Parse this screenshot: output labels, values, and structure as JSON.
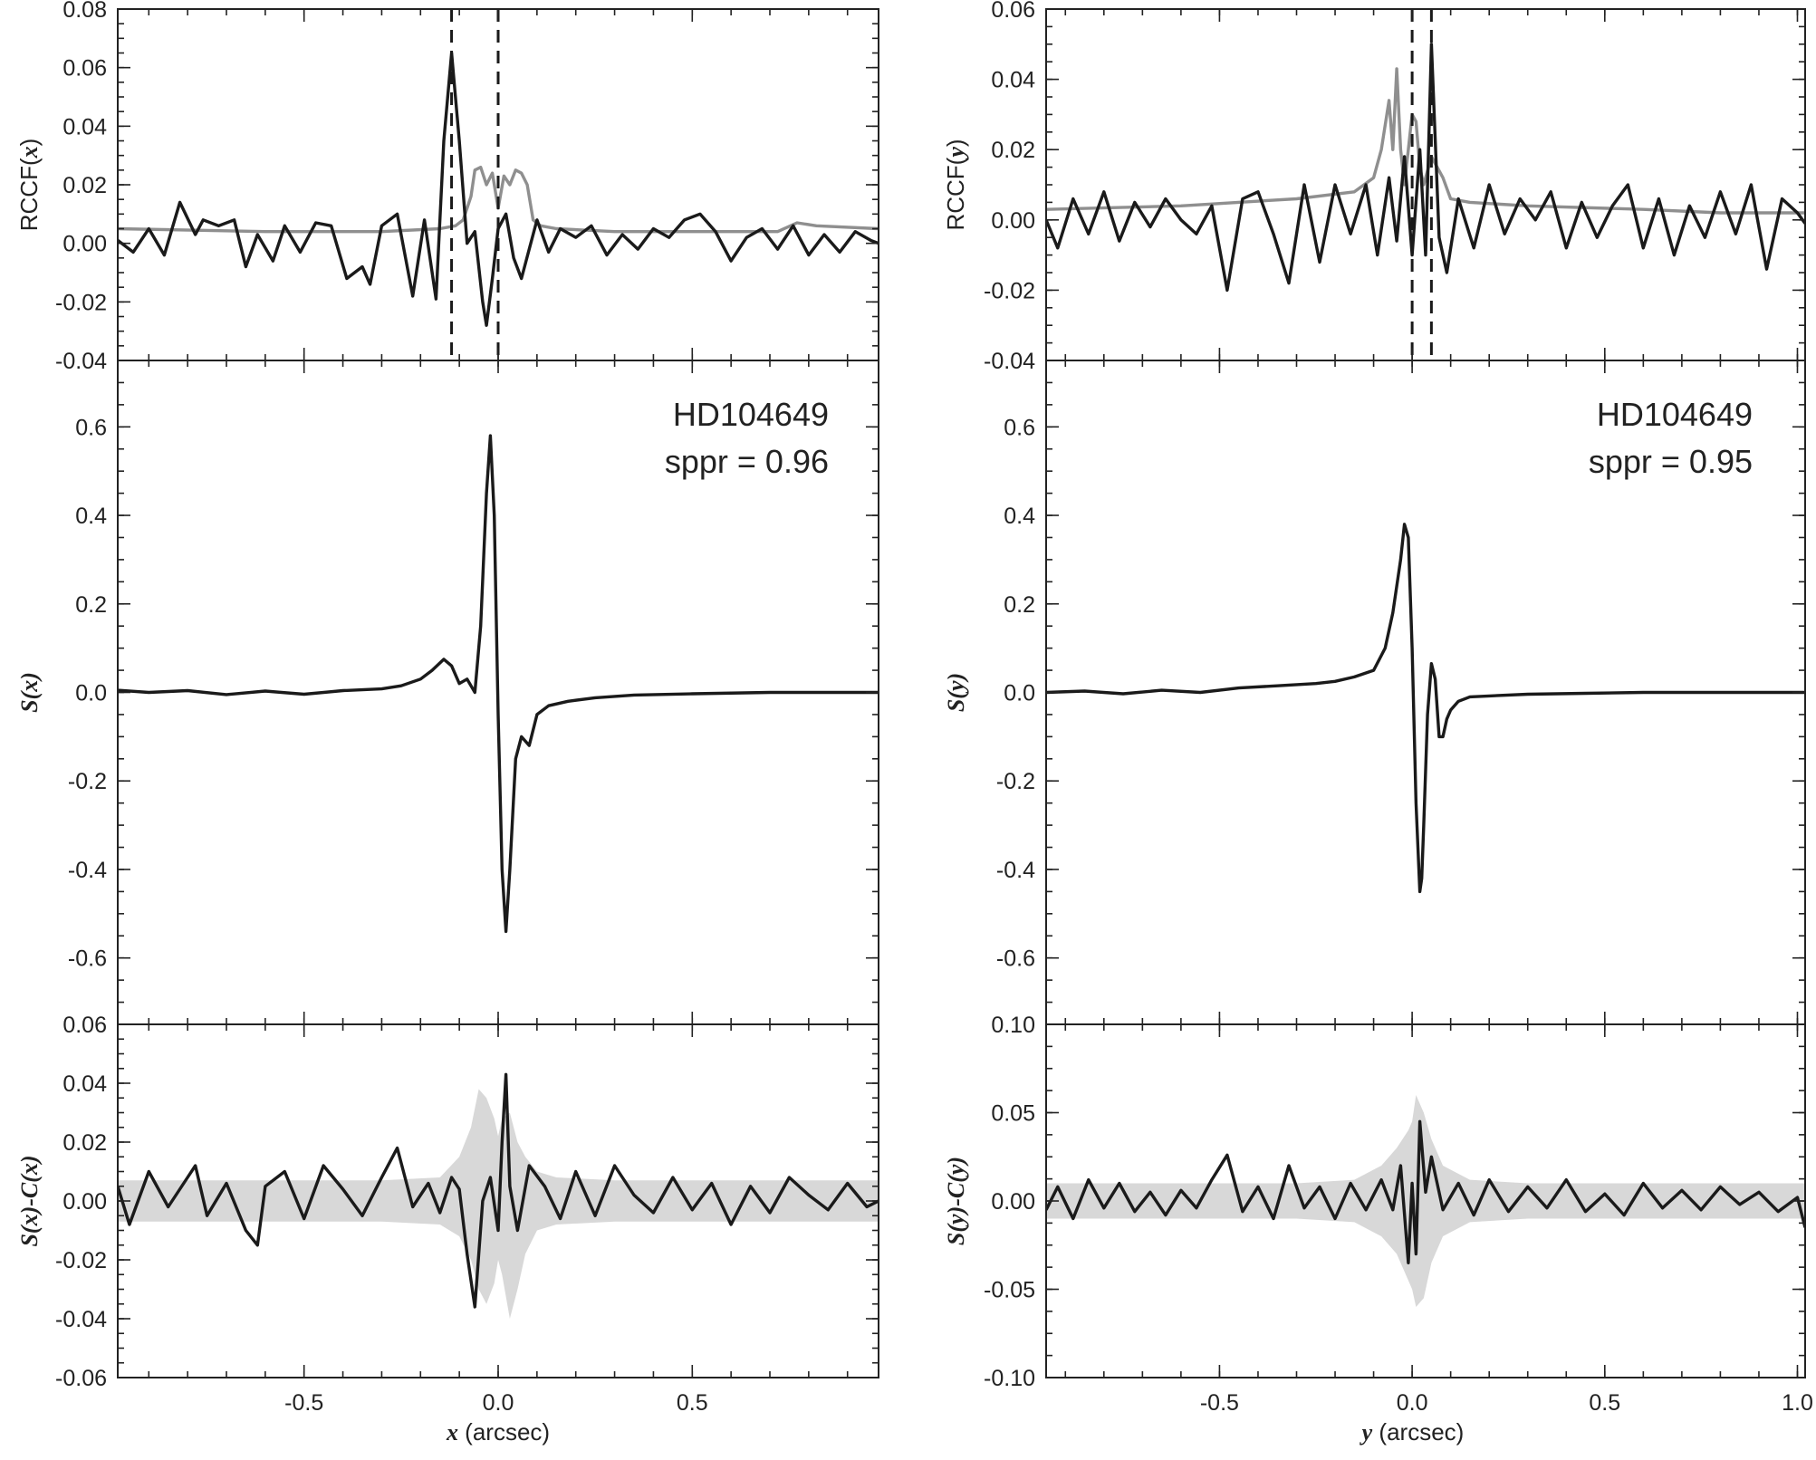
{
  "figure": {
    "panels_left": {
      "xlabel_var": "x",
      "xlabel_unit": " (arcsec)",
      "xlim": [
        -0.98,
        0.98
      ],
      "xticks": [
        -0.5,
        0.0,
        0.5
      ],
      "xtick_labels": [
        "-0.5",
        "0.0",
        "0.5"
      ]
    },
    "panels_right": {
      "xlabel_var": "y",
      "xlabel_unit": " (arcsec)",
      "xlim": [
        -0.95,
        1.02
      ],
      "xticks": [
        -0.5,
        0.0,
        0.5,
        1.0
      ],
      "xtick_labels": [
        "-0.5",
        "0.0",
        "0.5",
        "1.0"
      ]
    }
  },
  "chart_data": [
    {
      "id": "rccf-x",
      "type": "line",
      "ylabel_prefix": "RCCF(",
      "ylabel_var": "x",
      "ylabel_suffix": ")",
      "xlim": [
        -0.98,
        0.98
      ],
      "ylim": [
        -0.04,
        0.08
      ],
      "yticks": [
        -0.04,
        -0.02,
        0.0,
        0.02,
        0.04,
        0.06,
        0.08
      ],
      "ytick_labels": [
        "-0.04",
        "-0.02",
        "0.00",
        "0.02",
        "0.04",
        "0.06",
        "0.08"
      ],
      "vlines": [
        -0.12,
        0.0
      ],
      "series": [
        {
          "color": "#8f8f8f",
          "x": [
            -0.98,
            -0.6,
            -0.3,
            -0.15,
            -0.11,
            -0.09,
            -0.07,
            -0.06,
            -0.045,
            -0.03,
            -0.015,
            0.0,
            0.015,
            0.03,
            0.045,
            0.06,
            0.075,
            0.09,
            0.11,
            0.15,
            0.3,
            0.5,
            0.72,
            0.77,
            0.82,
            0.98
          ],
          "y": [
            0.005,
            0.004,
            0.004,
            0.005,
            0.006,
            0.008,
            0.016,
            0.025,
            0.026,
            0.02,
            0.024,
            0.012,
            0.023,
            0.02,
            0.025,
            0.024,
            0.02,
            0.008,
            0.006,
            0.005,
            0.004,
            0.004,
            0.004,
            0.007,
            0.006,
            0.005
          ]
        },
        {
          "color": "#1a1a1a",
          "x": [
            -0.98,
            -0.94,
            -0.9,
            -0.86,
            -0.82,
            -0.78,
            -0.76,
            -0.72,
            -0.68,
            -0.65,
            -0.62,
            -0.58,
            -0.55,
            -0.51,
            -0.47,
            -0.43,
            -0.39,
            -0.35,
            -0.33,
            -0.3,
            -0.26,
            -0.22,
            -0.19,
            -0.16,
            -0.14,
            -0.12,
            -0.1,
            -0.08,
            -0.06,
            -0.04,
            -0.03,
            -0.015,
            0.0,
            0.02,
            0.04,
            0.06,
            0.08,
            0.1,
            0.13,
            0.16,
            0.2,
            0.24,
            0.28,
            0.32,
            0.36,
            0.4,
            0.44,
            0.48,
            0.52,
            0.56,
            0.6,
            0.64,
            0.68,
            0.72,
            0.76,
            0.8,
            0.84,
            0.88,
            0.92,
            0.96,
            0.98
          ],
          "y": [
            0.001,
            -0.003,
            0.005,
            -0.004,
            0.014,
            0.003,
            0.008,
            0.006,
            0.008,
            -0.008,
            0.003,
            -0.006,
            0.006,
            -0.003,
            0.007,
            0.006,
            -0.012,
            -0.008,
            -0.014,
            0.006,
            0.01,
            -0.018,
            0.008,
            -0.019,
            0.035,
            0.065,
            0.035,
            0.0,
            0.004,
            -0.02,
            -0.028,
            -0.012,
            0.005,
            0.01,
            -0.005,
            -0.012,
            -0.002,
            0.008,
            -0.003,
            0.005,
            0.002,
            0.006,
            -0.004,
            0.003,
            -0.002,
            0.005,
            0.002,
            0.008,
            0.01,
            0.004,
            -0.006,
            0.002,
            0.005,
            -0.002,
            0.006,
            -0.004,
            0.003,
            -0.003,
            0.004,
            0.001,
            0.0
          ]
        }
      ]
    },
    {
      "id": "s-x",
      "type": "line",
      "ylabel_prefix": "",
      "ylabel_var": "S(x)",
      "ylabel_suffix": "",
      "xlim": [
        -0.98,
        0.98
      ],
      "ylim": [
        -0.75,
        0.75
      ],
      "yticks": [
        -0.6,
        -0.4,
        -0.2,
        0.0,
        0.2,
        0.4,
        0.6
      ],
      "ytick_labels": [
        "-0.6",
        "-0.4",
        "-0.2",
        "0.0",
        "0.2",
        "0.4",
        "0.6"
      ],
      "annotation": [
        "HD104649",
        "sppr = 0.96"
      ],
      "series": [
        {
          "color": "#1a1a1a",
          "x": [
            -0.98,
            -0.9,
            -0.8,
            -0.7,
            -0.6,
            -0.5,
            -0.4,
            -0.3,
            -0.25,
            -0.2,
            -0.17,
            -0.14,
            -0.12,
            -0.1,
            -0.08,
            -0.06,
            -0.045,
            -0.03,
            -0.02,
            -0.01,
            0.0,
            0.01,
            0.02,
            0.03,
            0.045,
            0.06,
            0.08,
            0.1,
            0.13,
            0.18,
            0.25,
            0.35,
            0.5,
            0.7,
            0.98
          ],
          "y": [
            0.005,
            0.0,
            0.004,
            -0.005,
            0.003,
            -0.004,
            0.004,
            0.008,
            0.015,
            0.03,
            0.05,
            0.075,
            0.06,
            0.02,
            0.03,
            0.0,
            0.15,
            0.45,
            0.58,
            0.4,
            -0.05,
            -0.4,
            -0.54,
            -0.4,
            -0.15,
            -0.1,
            -0.12,
            -0.05,
            -0.03,
            -0.02,
            -0.012,
            -0.006,
            -0.003,
            0.0,
            0.0
          ]
        }
      ]
    },
    {
      "id": "residual-x",
      "type": "line",
      "ylabel_prefix": "",
      "ylabel_var": "S(x)-C(x)",
      "ylabel_suffix": "",
      "xlim": [
        -0.98,
        0.98
      ],
      "ylim": [
        -0.06,
        0.06
      ],
      "yticks": [
        -0.06,
        -0.04,
        -0.02,
        0.0,
        0.02,
        0.04,
        0.06
      ],
      "ytick_labels": [
        "-0.06",
        "-0.04",
        "-0.02",
        "0.00",
        "0.02",
        "0.04",
        "0.06"
      ],
      "band": {
        "color": "#d8d8d8",
        "x": [
          -0.98,
          -0.3,
          -0.15,
          -0.1,
          -0.07,
          -0.05,
          -0.03,
          -0.01,
          0.0,
          0.01,
          0.03,
          0.05,
          0.07,
          0.1,
          0.15,
          0.3,
          0.98
        ],
        "upper": [
          0.007,
          0.007,
          0.008,
          0.015,
          0.025,
          0.038,
          0.035,
          0.028,
          0.022,
          0.028,
          0.03,
          0.02,
          0.015,
          0.01,
          0.008,
          0.007,
          0.007
        ],
        "lower": [
          -0.007,
          -0.007,
          -0.008,
          -0.012,
          -0.02,
          -0.03,
          -0.035,
          -0.028,
          -0.02,
          -0.025,
          -0.04,
          -0.03,
          -0.018,
          -0.01,
          -0.008,
          -0.007,
          -0.007
        ]
      },
      "series": [
        {
          "color": "#1a1a1a",
          "x": [
            -0.98,
            -0.95,
            -0.9,
            -0.85,
            -0.8,
            -0.78,
            -0.75,
            -0.7,
            -0.65,
            -0.62,
            -0.6,
            -0.55,
            -0.5,
            -0.45,
            -0.4,
            -0.35,
            -0.3,
            -0.26,
            -0.22,
            -0.18,
            -0.15,
            -0.12,
            -0.1,
            -0.08,
            -0.06,
            -0.04,
            -0.02,
            0.0,
            0.01,
            0.02,
            0.03,
            0.05,
            0.08,
            0.12,
            0.16,
            0.2,
            0.25,
            0.3,
            0.35,
            0.4,
            0.45,
            0.5,
            0.55,
            0.6,
            0.65,
            0.7,
            0.75,
            0.8,
            0.85,
            0.9,
            0.95,
            0.98
          ],
          "y": [
            0.005,
            -0.008,
            0.01,
            -0.002,
            0.008,
            0.012,
            -0.005,
            0.006,
            -0.01,
            -0.015,
            0.005,
            0.01,
            -0.006,
            0.012,
            0.004,
            -0.005,
            0.008,
            0.018,
            -0.002,
            0.006,
            -0.004,
            0.008,
            0.004,
            -0.018,
            -0.036,
            0.0,
            0.008,
            -0.01,
            0.02,
            0.043,
            0.005,
            -0.01,
            0.012,
            0.005,
            -0.006,
            0.01,
            -0.005,
            0.012,
            0.002,
            -0.004,
            0.008,
            -0.003,
            0.006,
            -0.008,
            0.005,
            -0.004,
            0.008,
            0.002,
            -0.003,
            0.006,
            -0.002,
            0.0
          ]
        }
      ]
    },
    {
      "id": "rccf-y",
      "type": "line",
      "ylabel_prefix": "RCCF(",
      "ylabel_var": "y",
      "ylabel_suffix": ")",
      "xlim": [
        -0.95,
        1.02
      ],
      "ylim": [
        -0.04,
        0.06
      ],
      "yticks": [
        -0.04,
        -0.02,
        0.0,
        0.02,
        0.04,
        0.06
      ],
      "ytick_labels": [
        "-0.04",
        "-0.02",
        "0.00",
        "0.02",
        "0.04",
        "0.06"
      ],
      "vlines": [
        0.0,
        0.05
      ],
      "series": [
        {
          "color": "#8f8f8f",
          "x": [
            -0.95,
            -0.6,
            -0.3,
            -0.15,
            -0.1,
            -0.08,
            -0.06,
            -0.05,
            -0.04,
            -0.03,
            -0.02,
            -0.01,
            0.0,
            0.01,
            0.02,
            0.03,
            0.05,
            0.08,
            0.1,
            0.15,
            0.3,
            0.6,
            0.8,
            1.02
          ],
          "y": [
            0.003,
            0.004,
            0.006,
            0.008,
            0.012,
            0.02,
            0.034,
            0.02,
            0.043,
            0.02,
            0.01,
            0.02,
            0.03,
            0.028,
            0.015,
            0.01,
            0.018,
            0.012,
            0.006,
            0.005,
            0.004,
            0.003,
            0.002,
            0.002
          ]
        },
        {
          "color": "#1a1a1a",
          "x": [
            -0.95,
            -0.92,
            -0.88,
            -0.84,
            -0.8,
            -0.76,
            -0.72,
            -0.68,
            -0.64,
            -0.6,
            -0.56,
            -0.52,
            -0.48,
            -0.44,
            -0.4,
            -0.36,
            -0.32,
            -0.28,
            -0.24,
            -0.2,
            -0.16,
            -0.12,
            -0.09,
            -0.06,
            -0.04,
            -0.02,
            0.0,
            0.02,
            0.035,
            0.05,
            0.07,
            0.09,
            0.12,
            0.16,
            0.2,
            0.24,
            0.28,
            0.32,
            0.36,
            0.4,
            0.44,
            0.48,
            0.52,
            0.56,
            0.6,
            0.64,
            0.68,
            0.72,
            0.76,
            0.8,
            0.84,
            0.88,
            0.92,
            0.96,
            1.0,
            1.02
          ],
          "y": [
            0.0,
            -0.008,
            0.006,
            -0.004,
            0.008,
            -0.006,
            0.005,
            -0.002,
            0.006,
            0.0,
            -0.004,
            0.004,
            -0.02,
            0.006,
            0.008,
            -0.004,
            -0.018,
            0.01,
            -0.012,
            0.01,
            -0.004,
            0.01,
            -0.01,
            0.012,
            -0.006,
            0.018,
            -0.01,
            0.02,
            -0.01,
            0.05,
            -0.005,
            -0.015,
            0.006,
            -0.008,
            0.01,
            -0.004,
            0.006,
            0.0,
            0.008,
            -0.008,
            0.005,
            -0.005,
            0.004,
            0.01,
            -0.008,
            0.006,
            -0.01,
            0.004,
            -0.005,
            0.008,
            -0.004,
            0.01,
            -0.014,
            0.006,
            0.002,
            -0.001
          ]
        }
      ]
    },
    {
      "id": "s-y",
      "type": "line",
      "ylabel_prefix": "",
      "ylabel_var": "S(y)",
      "ylabel_suffix": "",
      "xlim": [
        -0.95,
        1.02
      ],
      "ylim": [
        -0.75,
        0.75
      ],
      "yticks": [
        -0.6,
        -0.4,
        -0.2,
        0.0,
        0.2,
        0.4,
        0.6
      ],
      "ytick_labels": [
        "-0.6",
        "-0.4",
        "-0.2",
        "0.0",
        "0.2",
        "0.4",
        "0.6"
      ],
      "annotation": [
        "HD104649",
        "sppr = 0.95"
      ],
      "series": [
        {
          "color": "#1a1a1a",
          "x": [
            -0.95,
            -0.85,
            -0.75,
            -0.65,
            -0.55,
            -0.45,
            -0.35,
            -0.25,
            -0.2,
            -0.15,
            -0.1,
            -0.07,
            -0.05,
            -0.03,
            -0.02,
            -0.01,
            0.0,
            0.01,
            0.02,
            0.025,
            0.03,
            0.04,
            0.05,
            0.06,
            0.07,
            0.08,
            0.09,
            0.1,
            0.12,
            0.15,
            0.2,
            0.3,
            0.45,
            0.6,
            0.8,
            1.02
          ],
          "y": [
            0.0,
            0.003,
            -0.003,
            0.005,
            0.0,
            0.01,
            0.015,
            0.02,
            0.025,
            0.035,
            0.05,
            0.1,
            0.18,
            0.3,
            0.38,
            0.35,
            0.1,
            -0.25,
            -0.45,
            -0.42,
            -0.3,
            -0.05,
            0.065,
            0.03,
            -0.1,
            -0.1,
            -0.06,
            -0.04,
            -0.02,
            -0.01,
            -0.008,
            -0.004,
            -0.002,
            0.0,
            0.0,
            0.0
          ]
        }
      ]
    },
    {
      "id": "residual-y",
      "type": "line",
      "ylabel_prefix": "",
      "ylabel_var": "S(y)-C(y)",
      "ylabel_suffix": "",
      "xlim": [
        -0.95,
        1.02
      ],
      "ylim": [
        -0.1,
        0.1
      ],
      "yticks": [
        -0.1,
        -0.05,
        0.0,
        0.05,
        0.1
      ],
      "ytick_labels": [
        "-0.10",
        "-0.05",
        "0.00",
        "0.05",
        "0.10"
      ],
      "band": {
        "color": "#d8d8d8",
        "x": [
          -0.95,
          -0.3,
          -0.15,
          -0.08,
          -0.04,
          -0.01,
          0.0,
          0.01,
          0.03,
          0.05,
          0.08,
          0.15,
          0.3,
          1.02
        ],
        "upper": [
          0.01,
          0.01,
          0.012,
          0.02,
          0.03,
          0.04,
          0.045,
          0.06,
          0.05,
          0.035,
          0.02,
          0.012,
          0.01,
          0.01
        ],
        "lower": [
          -0.01,
          -0.01,
          -0.012,
          -0.02,
          -0.03,
          -0.045,
          -0.05,
          -0.06,
          -0.055,
          -0.035,
          -0.02,
          -0.012,
          -0.01,
          -0.01
        ]
      },
      "series": [
        {
          "color": "#1a1a1a",
          "x": [
            -0.95,
            -0.92,
            -0.88,
            -0.84,
            -0.8,
            -0.76,
            -0.72,
            -0.68,
            -0.64,
            -0.6,
            -0.56,
            -0.52,
            -0.48,
            -0.44,
            -0.4,
            -0.36,
            -0.32,
            -0.28,
            -0.24,
            -0.2,
            -0.16,
            -0.12,
            -0.08,
            -0.05,
            -0.03,
            -0.01,
            0.0,
            0.01,
            0.02,
            0.035,
            0.05,
            0.08,
            0.12,
            0.16,
            0.2,
            0.25,
            0.3,
            0.35,
            0.4,
            0.45,
            0.5,
            0.55,
            0.6,
            0.65,
            0.7,
            0.75,
            0.8,
            0.85,
            0.9,
            0.95,
            1.0,
            1.02
          ],
          "y": [
            -0.005,
            0.008,
            -0.01,
            0.012,
            -0.004,
            0.01,
            -0.006,
            0.005,
            -0.008,
            0.006,
            -0.004,
            0.012,
            0.026,
            -0.006,
            0.008,
            -0.01,
            0.02,
            -0.004,
            0.008,
            -0.01,
            0.01,
            -0.005,
            0.012,
            -0.005,
            0.02,
            -0.035,
            0.01,
            -0.03,
            0.045,
            0.005,
            0.025,
            -0.005,
            0.01,
            -0.008,
            0.012,
            -0.006,
            0.008,
            -0.004,
            0.012,
            -0.006,
            0.004,
            -0.008,
            0.01,
            -0.004,
            0.006,
            -0.005,
            0.008,
            -0.002,
            0.005,
            -0.006,
            0.002,
            -0.015
          ]
        }
      ]
    }
  ]
}
